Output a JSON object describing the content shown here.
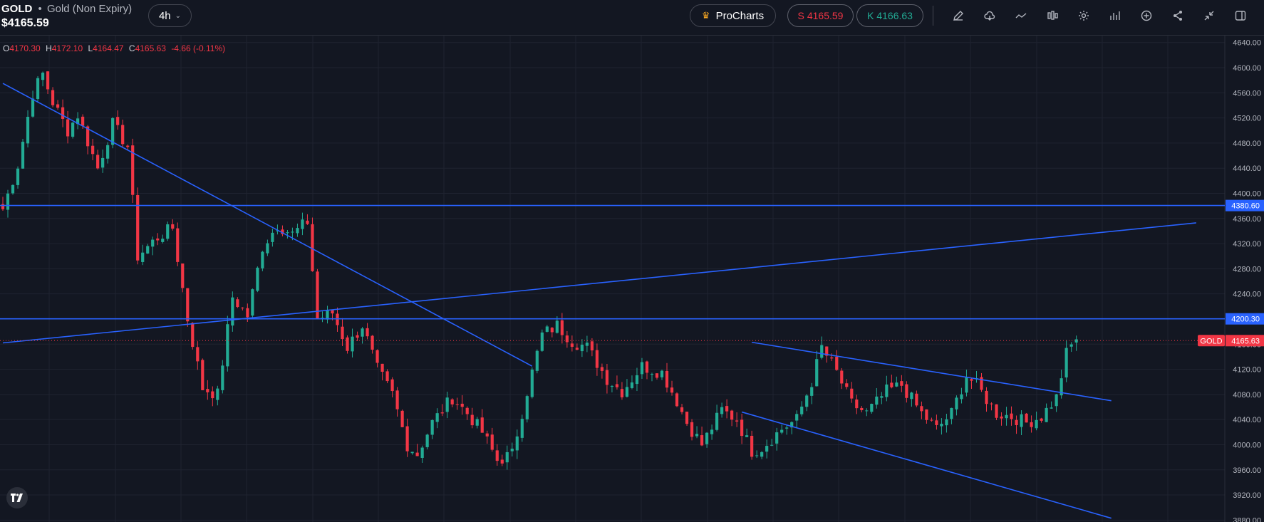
{
  "header": {
    "symbol": "GOLD",
    "separator": "•",
    "symbol_name": "Gold (Non Expiry)",
    "last_price": "$4165.59",
    "timeframe": "4h",
    "procharts_label": "ProCharts",
    "sell": {
      "tag": "S",
      "value": "4165.59"
    },
    "buy": {
      "tag": "K",
      "value": "4166.63"
    },
    "toolbar_icons": [
      "pencil-icon",
      "cloud-icon",
      "line-chart-icon",
      "candles-icon",
      "gear-icon",
      "bar-chart-icon",
      "plus-circle-icon",
      "share-icon",
      "collapse-icon",
      "sidebar-icon"
    ]
  },
  "ohlc": {
    "o_label": "O",
    "o": "4170.30",
    "h_label": "H",
    "h": "4172.10",
    "l_label": "L",
    "l": "4164.47",
    "c_label": "C",
    "c": "4165.63",
    "change": "-4.66 (-0.11%)"
  },
  "colors": {
    "background": "#131722",
    "up": "#22ab94",
    "down": "#f23645",
    "drawing": "#2962ff",
    "grid": "#1f2330"
  },
  "chart_data": {
    "type": "candlestick",
    "y_ticks": [
      "4640.00",
      "4600.00",
      "4560.00",
      "4520.00",
      "4480.00",
      "4440.00",
      "4400.00",
      "4360.00",
      "4320.00",
      "4280.00",
      "4240.00",
      "4200.00",
      "4160.00",
      "4120.00",
      "4080.00",
      "4040.00",
      "4000.00",
      "3960.00",
      "3920.00",
      "3880.00"
    ],
    "ylim": [
      3877,
      4651
    ],
    "bar_count": 240,
    "levels": [
      {
        "label": "4380.60",
        "value": 4380.6,
        "color": "#2962ff"
      },
      {
        "label": "4200.30",
        "value": 4200.3,
        "color": "#2962ff"
      }
    ],
    "last_price_label": {
      "name": "GOLD",
      "value": "4165.63",
      "price": 4165.63,
      "color": "#f23645"
    },
    "trendlines": [
      {
        "from": [
          0,
          4575
        ],
        "to": [
          106,
          4125
        ]
      },
      {
        "from": [
          0,
          4162
        ],
        "to": [
          239,
          4353
        ]
      },
      {
        "from": [
          150,
          4163
        ],
        "to": [
          222,
          4070
        ]
      },
      {
        "from": [
          148,
          4052
        ],
        "to": [
          222,
          3883
        ]
      }
    ],
    "anchors": [
      [
        0,
        4375
      ],
      [
        3,
        4445
      ],
      [
        6,
        4560
      ],
      [
        8,
        4590
      ],
      [
        10,
        4545
      ],
      [
        13,
        4500
      ],
      [
        15,
        4525
      ],
      [
        19,
        4440
      ],
      [
        22,
        4510
      ],
      [
        25,
        4475
      ],
      [
        27,
        4300
      ],
      [
        31,
        4330
      ],
      [
        34,
        4345
      ],
      [
        37,
        4200
      ],
      [
        40,
        4090
      ],
      [
        43,
        4080
      ],
      [
        46,
        4235
      ],
      [
        49,
        4205
      ],
      [
        52,
        4315
      ],
      [
        55,
        4350
      ],
      [
        58,
        4335
      ],
      [
        61,
        4355
      ],
      [
        63,
        4200
      ],
      [
        66,
        4210
      ],
      [
        69,
        4155
      ],
      [
        72,
        4190
      ],
      [
        75,
        4120
      ],
      [
        78,
        4080
      ],
      [
        81,
        4000
      ],
      [
        83,
        3985
      ],
      [
        86,
        4035
      ],
      [
        90,
        4075
      ],
      [
        93,
        4050
      ],
      [
        96,
        4020
      ],
      [
        99,
        3975
      ],
      [
        102,
        3985
      ],
      [
        105,
        4085
      ],
      [
        108,
        4175
      ],
      [
        111,
        4190
      ],
      [
        114,
        4165
      ],
      [
        117,
        4155
      ],
      [
        121,
        4105
      ],
      [
        124,
        4085
      ],
      [
        128,
        4125
      ],
      [
        132,
        4115
      ],
      [
        135,
        4070
      ],
      [
        137,
        4035
      ],
      [
        140,
        4000
      ],
      [
        144,
        4055
      ],
      [
        147,
        4040
      ],
      [
        150,
        3990
      ],
      [
        152,
        3995
      ],
      [
        156,
        4025
      ],
      [
        159,
        4040
      ],
      [
        162,
        4100
      ],
      [
        164,
        4155
      ],
      [
        167,
        4115
      ],
      [
        170,
        4065
      ],
      [
        173,
        4050
      ],
      [
        177,
        4085
      ],
      [
        180,
        4095
      ],
      [
        184,
        4050
      ],
      [
        187,
        4025
      ],
      [
        190,
        4050
      ],
      [
        193,
        4110
      ],
      [
        195,
        4095
      ],
      [
        199,
        4050
      ],
      [
        202,
        4045
      ],
      [
        205,
        4035
      ],
      [
        208,
        4045
      ],
      [
        211,
        4075
      ],
      [
        213,
        4145
      ],
      [
        215,
        4170
      ]
    ],
    "seed": 7
  }
}
